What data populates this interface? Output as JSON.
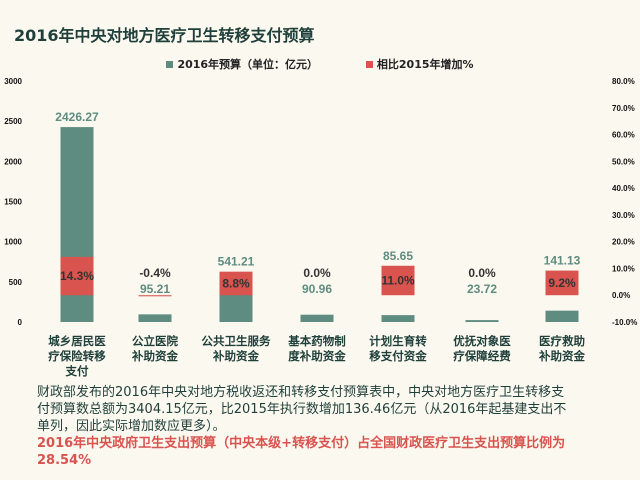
{
  "chart_data": {
    "type": "bar",
    "title": "2016年中央对地方医疗卫生转移支付预算",
    "categories": [
      [
        "城乡居民医",
        "疗保险转移",
        "支付"
      ],
      [
        "公立医院",
        "补助资金"
      ],
      [
        "公共卫生服务",
        "补助资金"
      ],
      [
        "基本药物制",
        "度补助资金"
      ],
      [
        "计划生育转",
        "移支付资金"
      ],
      [
        "优抚对象医",
        "疗保障经费"
      ],
      [
        "医疗救助",
        "补助资金"
      ]
    ],
    "series": [
      {
        "name": "2016年预算（单位：亿元）",
        "axis": "left",
        "color": "#5f8c80",
        "values": [
          2426.27,
          95.21,
          541.21,
          90.96,
          85.65,
          23.72,
          141.13
        ],
        "labels": [
          "2426.27",
          "95.21",
          "541.21",
          "90.96",
          "85.65",
          "23.72",
          "141.13"
        ]
      },
      {
        "name": "相比2015年增加%",
        "axis": "right",
        "color": "#d9534f",
        "values": [
          14.3,
          -0.4,
          8.8,
          0.0,
          11.0,
          0.0,
          9.2
        ],
        "labels": [
          "14.3%",
          "-0.4%",
          "8.8%",
          "0.0%",
          "11.0%",
          "0.0%",
          "9.2%"
        ]
      }
    ],
    "left_ylim": [
      0,
      3000
    ],
    "left_ticks": [
      "0",
      "500",
      "1000",
      "1500",
      "2000",
      "2500",
      "3000"
    ],
    "right_ylim": [
      -10,
      80
    ],
    "right_ticks": [
      "-10.0%",
      "0.0%",
      "10.0%",
      "20.0%",
      "30.0%",
      "40.0%",
      "50.0%",
      "60.0%",
      "70.0%",
      "80.0%"
    ],
    "legend": "top-center",
    "grid": false
  },
  "text": {
    "paragraph": "财政部发布的2016年中央对地方税收返还和转移支付预算表中，中央对地方医疗卫生转移支付预算数总额为3404.15亿元，比2015年执行数增加136.46亿元（从2016年起基建支出不单列，因此实际增加数应更多）。",
    "note": "2016年中央政府卫生支出预算（中央本级+转移支付）占全国财政医疗卫生支出预算比例为28.54%"
  }
}
